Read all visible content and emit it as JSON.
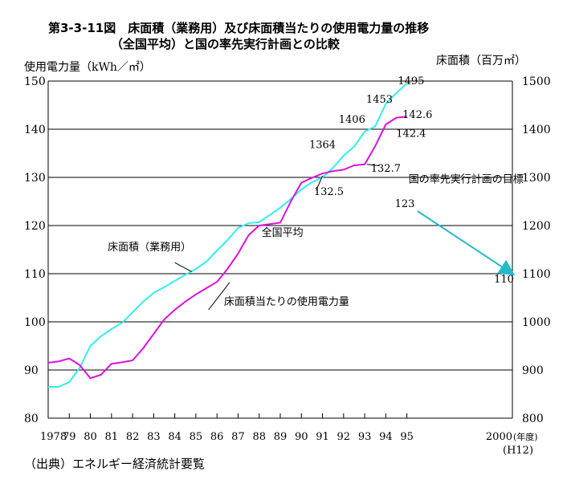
{
  "title_line1": "第3-3-11図　床面積（業務用）及び床面積当たりの使用電力量の推移",
  "title_line2": "（全国平均）と国の率先実行計画との比較",
  "source_note": "（出典）エネルギー経済統計要覧",
  "chart_data": {
    "type": "line",
    "title": "第3-3-11図　床面積（業務用）及び床面積当たりの使用電力量の推移（全国平均）と国の率先実行計画との比較",
    "ylabel_left": "使用電力量（kWh／㎡）",
    "ylabel_right": "床面積（百万㎡）",
    "ylim_left": [
      80,
      150
    ],
    "ylim_right": [
      800,
      1500
    ],
    "yticks_left": [
      "150",
      "140",
      "130",
      "120",
      "110",
      "100",
      "90",
      "80"
    ],
    "yticks_right": [
      "1500",
      "1400",
      "1300",
      "1200",
      "1100",
      "1000",
      "900",
      "800"
    ],
    "xticks": [
      {
        "x": 1978,
        "label": "1978"
      },
      {
        "x": 1979,
        "label": "79"
      },
      {
        "x": 1980,
        "label": "80"
      },
      {
        "x": 1981,
        "label": "81"
      },
      {
        "x": 1982,
        "label": "82"
      },
      {
        "x": 1983,
        "label": "83"
      },
      {
        "x": 1984,
        "label": "84"
      },
      {
        "x": 1985,
        "label": "85"
      },
      {
        "x": 1986,
        "label": "86"
      },
      {
        "x": 1987,
        "label": "87"
      },
      {
        "x": 1988,
        "label": "88"
      },
      {
        "x": 1989,
        "label": "89"
      },
      {
        "x": 1990,
        "label": "90"
      },
      {
        "x": 1991,
        "label": "91"
      },
      {
        "x": 1992,
        "label": "92"
      },
      {
        "x": 1993,
        "label": "93"
      },
      {
        "x": 1994,
        "label": "94"
      },
      {
        "x": 1995,
        "label": "95"
      },
      {
        "x": 2000,
        "label": "2000"
      }
    ],
    "x_year_unit": "(年度)",
    "x_era_label": "(H12)",
    "grid": "horizontal",
    "colors": {
      "floor_area": "#33eeee",
      "power_per_area": "#dd11dd",
      "target": "#22bbcc"
    },
    "series": [
      {
        "name": "床面積（業務用）",
        "axis": "right",
        "x": [
          1978,
          1978.5,
          1979,
          1979.5,
          1980,
          1980.5,
          1981,
          1981.5,
          1982,
          1982.5,
          1983,
          1983.5,
          1984,
          1984.5,
          1985,
          1985.5,
          1986,
          1986.5,
          1987,
          1987.5,
          1988,
          1988.5,
          1989,
          1989.5,
          1990,
          1990.5,
          1991,
          1991.5,
          1992,
          1992.5,
          1993,
          1993.5,
          1994,
          1994.5,
          1995
        ],
        "y": [
          865,
          865,
          875,
          905,
          950,
          970,
          985,
          998,
          1020,
          1042,
          1060,
          1072,
          1085,
          1098,
          1110,
          1125,
          1148,
          1170,
          1195,
          1205,
          1207,
          1222,
          1237,
          1255,
          1275,
          1290,
          1300,
          1320,
          1345,
          1364,
          1395,
          1406,
          1453,
          1475,
          1495
        ]
      },
      {
        "name": "床面積当たりの使用電力量",
        "axis": "left",
        "x": [
          1978,
          1978.5,
          1979,
          1979.5,
          1980,
          1980.5,
          1981,
          1981.5,
          1982,
          1982.5,
          1983,
          1983.5,
          1984,
          1984.5,
          1985,
          1985.5,
          1986,
          1986.5,
          1987,
          1987.5,
          1988,
          1988.5,
          1989,
          1989.5,
          1990,
          1990.5,
          1991,
          1991.5,
          1992,
          1992.5,
          1993,
          1993.5,
          1994,
          1994.5,
          1995
        ],
        "y": [
          91.5,
          91.8,
          92.4,
          91.0,
          88.3,
          89.0,
          91.3,
          91.6,
          92.0,
          94.5,
          97.5,
          100.5,
          102.5,
          104.2,
          105.7,
          107.0,
          108.3,
          111.0,
          114.2,
          118.0,
          120.0,
          120.3,
          120.6,
          125.0,
          128.9,
          129.9,
          130.8,
          131.3,
          131.6,
          132.5,
          132.7,
          136.5,
          141.0,
          142.4,
          142.6
        ]
      },
      {
        "name": "国の率先実行計画の目標",
        "axis": "left",
        "style": "arrow",
        "x": [
          1995.5,
          2000
        ],
        "y": [
          123,
          110
        ]
      }
    ],
    "annotations": [
      {
        "text": "1495",
        "x": 1995.2,
        "y": 149.3
      },
      {
        "text": "1453",
        "x": 1993.7,
        "y": 145.5
      },
      {
        "text": "1406",
        "x": 1992.4,
        "y": 141.3
      },
      {
        "text": "1364",
        "x": 1991.0,
        "y": 136.1
      },
      {
        "text": "142.6",
        "x": 1995.5,
        "y": 142.3
      },
      {
        "text": "142.4",
        "x": 1995.2,
        "y": 138.4
      },
      {
        "text": "132.7",
        "x": 1994.0,
        "y": 131.2
      },
      {
        "text": "132.5",
        "x": 1991.3,
        "y": 126.3
      },
      {
        "text": "123",
        "x": 1994.9,
        "y": 123.8
      },
      {
        "text": "110",
        "x": 1999.6,
        "y": 108.2
      },
      {
        "text": "国の率先実行計画の目標",
        "x": 1997.8,
        "y": 128.9
      },
      {
        "text": "全国平均",
        "x": 1889.0,
        "y": 0,
        "ref": "series-label"
      },
      {
        "text": "床面積（業務用）",
        "x": 1982.8,
        "y": 114.8
      },
      {
        "text": "床面積当たりの使用電力量",
        "x": 1989.3,
        "y": 103.5
      }
    ]
  }
}
